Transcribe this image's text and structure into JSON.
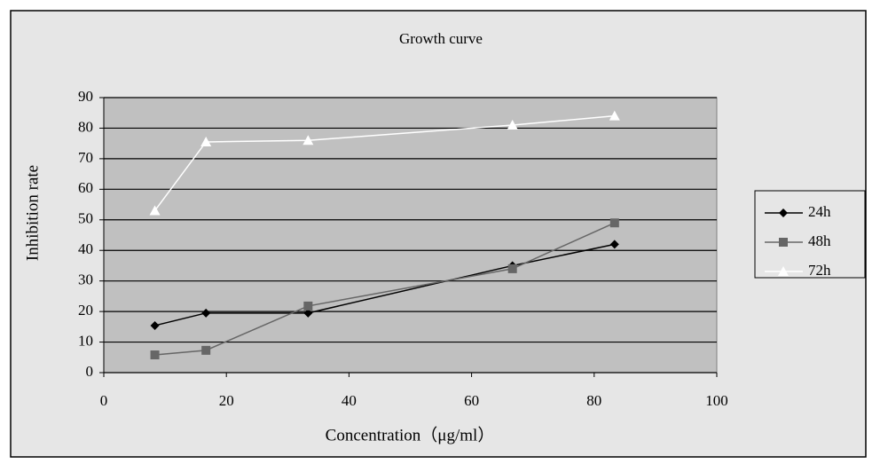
{
  "chart_data": {
    "type": "line",
    "title": "Growth curve",
    "x_label": "Concentration（μg/ml）",
    "y_label": "Inhibition rate",
    "x": [
      8.33,
      16.67,
      33.33,
      66.67,
      83.33
    ],
    "series": [
      {
        "name": "24h",
        "color": "#000000",
        "marker": "diamond",
        "values": [
          15.4,
          19.5,
          19.5,
          35,
          42
        ]
      },
      {
        "name": "48h",
        "color": "#666666",
        "marker": "square",
        "values": [
          5.8,
          7.3,
          21.8,
          34,
          49
        ]
      },
      {
        "name": "72h",
        "color": "#ffffff",
        "marker": "triangle",
        "values": [
          53,
          75.5,
          76,
          81,
          84
        ]
      }
    ],
    "xlim": [
      0,
      100
    ],
    "xticks": [
      0,
      20,
      40,
      60,
      80,
      100
    ],
    "ylim": [
      0,
      90
    ],
    "yticks": [
      0,
      10,
      20,
      30,
      40,
      50,
      60,
      70,
      80,
      90
    ],
    "grid": true,
    "legend": "right"
  }
}
